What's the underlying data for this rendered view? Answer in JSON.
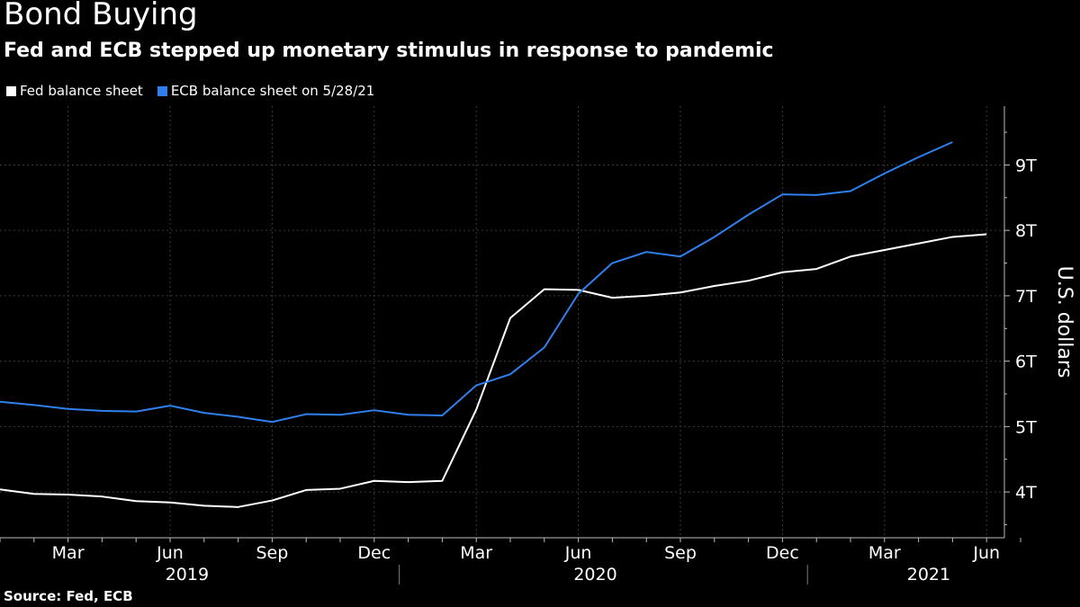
{
  "header": {
    "title": "Bond Buying",
    "subtitle": "Fed and ECB stepped up monetary stimulus in response to pandemic"
  },
  "footer": {
    "source": "Source: Fed, ECB"
  },
  "colors": {
    "background": "#000000",
    "fed": "#ffffff",
    "ecb": "#2f80ed",
    "grid": "#3a3a3a"
  },
  "chart_data": {
    "type": "line",
    "title": "Bond Buying",
    "subtitle": "Fed and ECB stepped up monetary stimulus in response to pandemic",
    "ylabel": "U.S. dollars",
    "xlabel": "",
    "ylim": [
      3.3,
      9.9
    ],
    "y_ticks": [
      {
        "value": 4,
        "label": "4T"
      },
      {
        "value": 5,
        "label": "5T"
      },
      {
        "value": 6,
        "label": "6T"
      },
      {
        "value": 7,
        "label": "7T"
      },
      {
        "value": 8,
        "label": "8T"
      },
      {
        "value": 9,
        "label": "9T"
      }
    ],
    "x_month_ticks": [
      "Mar",
      "Jun",
      "Sep",
      "Dec",
      "Mar",
      "Jun",
      "Sep",
      "Dec",
      "Mar",
      "Jun"
    ],
    "x_year_labels": [
      "2019",
      "2020",
      "2021"
    ],
    "x_start_month_index": 0,
    "grid": true,
    "legend_position": "top-left",
    "series": [
      {
        "name": "Fed balance sheet",
        "color": "#ffffff",
        "start_month_index": 0,
        "values": [
          4.04,
          3.97,
          3.96,
          3.93,
          3.86,
          3.84,
          3.79,
          3.77,
          3.87,
          4.03,
          4.05,
          4.17,
          4.15,
          4.17,
          5.26,
          6.66,
          7.1,
          7.09,
          6.97,
          7.0,
          7.05,
          7.15,
          7.23,
          7.36,
          7.41,
          7.6,
          7.7,
          7.8,
          7.9,
          7.94
        ]
      },
      {
        "name": "ECB balance sheet on 5/28/21",
        "color": "#2f80ed",
        "start_month_index": 0,
        "values": [
          5.38,
          5.33,
          5.27,
          5.24,
          5.23,
          5.32,
          5.21,
          5.15,
          5.07,
          5.19,
          5.18,
          5.25,
          5.18,
          5.17,
          5.63,
          5.8,
          6.21,
          7.03,
          7.5,
          7.67,
          7.6,
          7.9,
          8.24,
          8.55,
          8.54,
          8.6,
          8.87,
          9.12,
          9.35
        ]
      }
    ]
  }
}
